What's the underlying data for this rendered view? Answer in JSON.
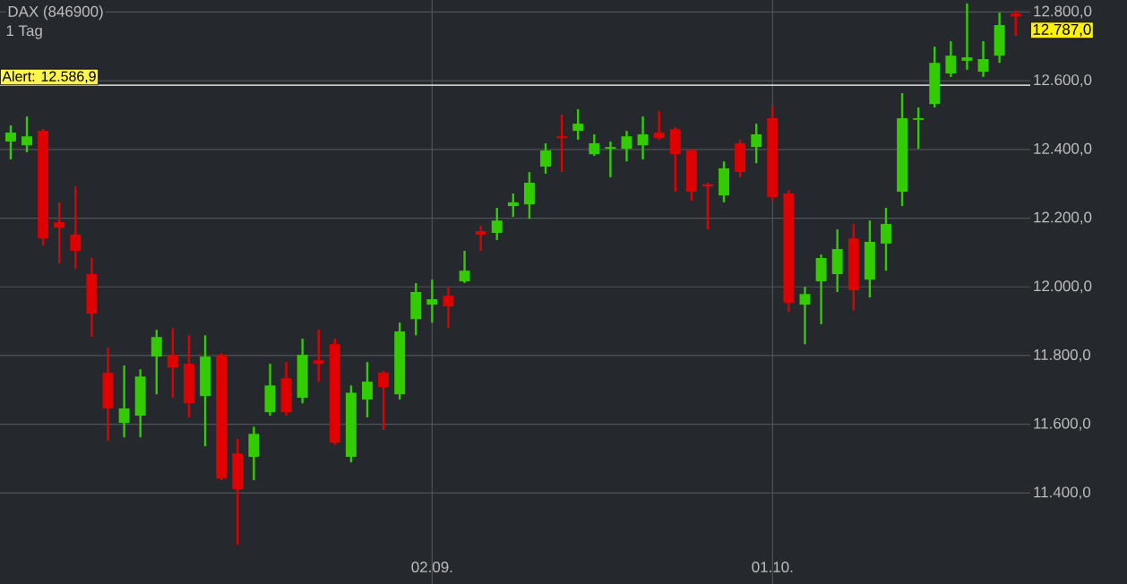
{
  "chart_data": {
    "type": "candlestick",
    "title": "DAX (846900)",
    "subtitle": "1 Tag",
    "categories": [
      null,
      null,
      null,
      null,
      null,
      null,
      null,
      null,
      null,
      null,
      null,
      null,
      null,
      null,
      null,
      null,
      null,
      null,
      null,
      null,
      null,
      null,
      null,
      null,
      null,
      null,
      "02.09.",
      null,
      null,
      null,
      null,
      null,
      null,
      null,
      null,
      null,
      null,
      null,
      null,
      null,
      null,
      null,
      null,
      null,
      null,
      null,
      null,
      "01.10.",
      null,
      null,
      null,
      null,
      null,
      null,
      null,
      null,
      null,
      null,
      null,
      null,
      null,
      null,
      null
    ],
    "ohlc": [
      [
        12423,
        12470,
        12371,
        12449
      ],
      [
        12412,
        12496,
        12392,
        12438
      ],
      [
        12454,
        12460,
        12120,
        12141
      ],
      [
        12188,
        12246,
        12068,
        12172
      ],
      [
        12152,
        12292,
        12053,
        12105
      ],
      [
        12037,
        12084,
        11854,
        11922
      ],
      [
        11750,
        11823,
        11552,
        11646
      ],
      [
        11604,
        11771,
        11562,
        11646
      ],
      [
        11625,
        11760,
        11562,
        11739
      ],
      [
        11797,
        11875,
        11687,
        11854
      ],
      [
        11802,
        11880,
        11677,
        11765
      ],
      [
        11776,
        11859,
        11620,
        11661
      ],
      [
        11682,
        11859,
        11536,
        11797
      ],
      [
        11802,
        11807,
        11437,
        11442
      ],
      [
        11515,
        11557,
        11249,
        11411
      ],
      [
        11505,
        11593,
        11437,
        11572
      ],
      [
        11635,
        11776,
        11625,
        11713
      ],
      [
        11734,
        11781,
        11625,
        11635
      ],
      [
        11677,
        11849,
        11661,
        11802
      ],
      [
        11786,
        11875,
        11724,
        11776
      ],
      [
        11833,
        11849,
        11540,
        11546
      ],
      [
        11505,
        11713,
        11489,
        11692
      ],
      [
        11672,
        11781,
        11620,
        11724
      ],
      [
        11750,
        11755,
        11583,
        11708
      ],
      [
        11687,
        11896,
        11672,
        11870
      ],
      [
        11906,
        12011,
        11859,
        11985
      ],
      [
        11948,
        12021,
        11896,
        11964
      ],
      [
        11974,
        12000,
        11880,
        11943
      ],
      [
        12016,
        12105,
        12011,
        12047
      ],
      [
        12162,
        12178,
        12105,
        12152
      ],
      [
        12157,
        12230,
        12136,
        12193
      ],
      [
        12235,
        12272,
        12204,
        12246
      ],
      [
        12240,
        12334,
        12198,
        12303
      ],
      [
        12350,
        12418,
        12329,
        12397
      ],
      [
        12438,
        12501,
        12334,
        12433
      ],
      [
        12454,
        12517,
        12428,
        12475
      ],
      [
        12386,
        12444,
        12381,
        12418
      ],
      [
        12402,
        12423,
        12319,
        12407
      ],
      [
        12402,
        12454,
        12365,
        12438
      ],
      [
        12412,
        12496,
        12371,
        12444
      ],
      [
        12449,
        12511,
        12428,
        12433
      ],
      [
        12459,
        12465,
        12277,
        12386
      ],
      [
        12397,
        12402,
        12251,
        12277
      ],
      [
        12298,
        12303,
        12167,
        12292
      ],
      [
        12266,
        12365,
        12246,
        12345
      ],
      [
        12418,
        12428,
        12319,
        12334
      ],
      [
        12407,
        12475,
        12360,
        12444
      ],
      [
        12491,
        12527,
        12251,
        12261
      ],
      [
        12272,
        12282,
        11927,
        11953
      ],
      [
        11948,
        12000,
        11833,
        11979
      ],
      [
        12016,
        12094,
        11891,
        12084
      ],
      [
        12037,
        12167,
        11985,
        12110
      ],
      [
        12141,
        12183,
        11932,
        11990
      ],
      [
        12021,
        12193,
        11969,
        12131
      ],
      [
        12126,
        12230,
        12047,
        12183
      ],
      [
        12277,
        12564,
        12235,
        12491
      ],
      [
        12486,
        12522,
        12402,
        12491
      ],
      [
        12532,
        12699,
        12522,
        12652
      ],
      [
        12621,
        12715,
        12611,
        12673
      ],
      [
        12658,
        12825,
        12632,
        12668
      ],
      [
        12626,
        12715,
        12611,
        12663
      ],
      [
        12673,
        12798,
        12652,
        12762
      ],
      [
        12795,
        12805,
        12731,
        12787
      ]
    ],
    "ylim": [
      11135,
      12835
    ],
    "yticks": [
      {
        "value": 11400,
        "label": "11.400,0"
      },
      {
        "value": 11600,
        "label": "11.600,0"
      },
      {
        "value": 11800,
        "label": "11.800,0"
      },
      {
        "value": 12000,
        "label": "12.000,0"
      },
      {
        "value": 12200,
        "label": "12.200,0"
      },
      {
        "value": 12400,
        "label": "12.400,0"
      },
      {
        "value": 12600,
        "label": "12.600,0"
      },
      {
        "value": 12800,
        "label": "12.800,0"
      }
    ],
    "grid": true,
    "ref_lines": [
      {
        "axis": "y",
        "value": 12586.9,
        "label": "Alert: 12.586,9",
        "color": "#c8c8c8"
      }
    ],
    "annotations": [
      "12.787,0"
    ]
  }
}
